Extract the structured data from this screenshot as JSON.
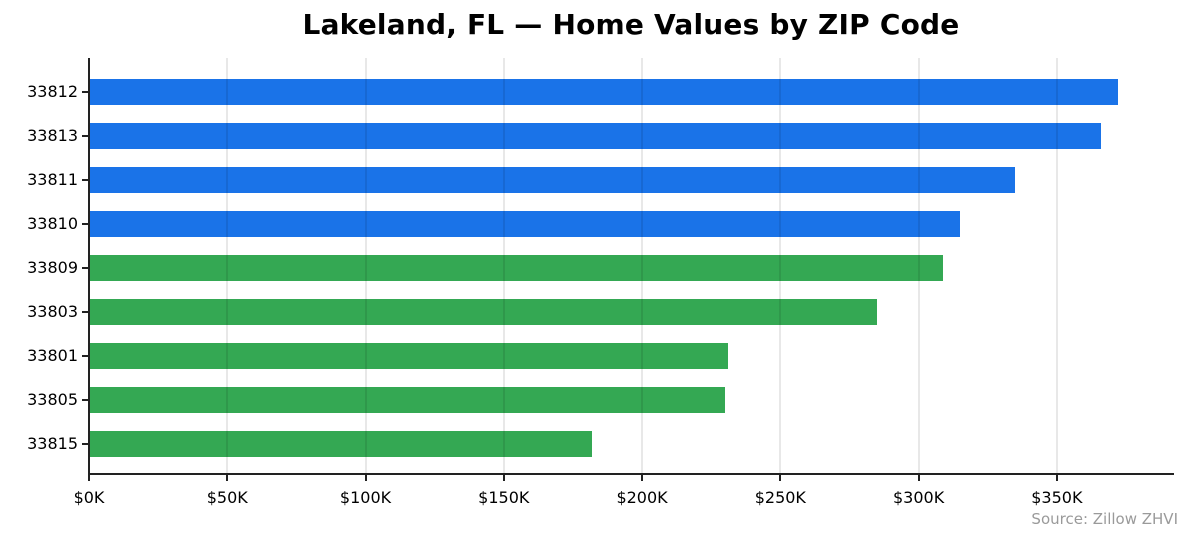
{
  "page": {
    "title": "Lakeland, FL — Home Values by ZIP Code",
    "source": "Source: Zillow ZHVI"
  },
  "colors": {
    "blue": "#1a73e8",
    "green": "#34a853",
    "axis": "#222222",
    "grid": "rgba(0,0,0,0.09)",
    "text": "#000000",
    "source_text": "#9a9a9a",
    "background": "#ffffff"
  },
  "chart_data": {
    "type": "bar",
    "orientation": "horizontal",
    "title": "Lakeland, FL — Home Values by ZIP Code",
    "categories": [
      "33812",
      "33813",
      "33811",
      "33810",
      "33809",
      "33803",
      "33801",
      "33805",
      "33815"
    ],
    "values": [
      372000,
      366000,
      335000,
      315000,
      309000,
      285000,
      231000,
      230000,
      182000
    ],
    "bar_colors": [
      "#1a73e8",
      "#1a73e8",
      "#1a73e8",
      "#1a73e8",
      "#34a853",
      "#34a853",
      "#34a853",
      "#34a853",
      "#34a853"
    ],
    "xlabel": "",
    "ylabel": "",
    "xlim": [
      0,
      392000
    ],
    "x_ticks": [
      0,
      50000,
      100000,
      150000,
      200000,
      250000,
      300000,
      350000
    ],
    "x_tick_labels": [
      "$0K",
      "$50K",
      "$100K",
      "$150K",
      "$200K",
      "$250K",
      "$300K",
      "$350K"
    ],
    "grid": "vertical",
    "legend": "none",
    "source_note": "Source: Zillow ZHVI"
  }
}
